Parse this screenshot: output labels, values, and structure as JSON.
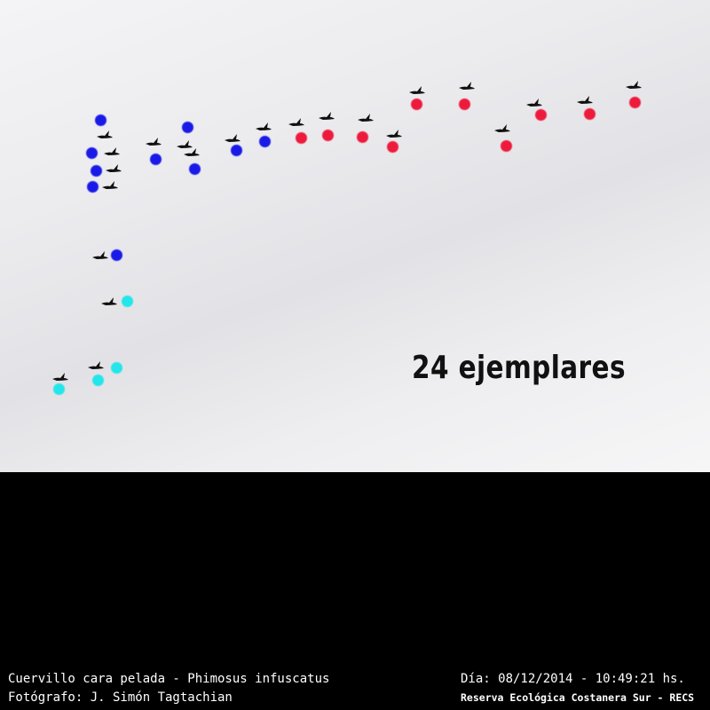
{
  "count_label": "24 ejemplares",
  "caption": {
    "species": "Cuervillo cara pelada - Phimosus infuscatus",
    "photographer": "Fotógrafo: J. Simón Tagtachian",
    "date": "Día: 08/12/2014 - 10:49:21 hs.",
    "place": "Reserva Ecológica Costanera Sur - RECS"
  },
  "marker_groups": [
    {
      "color": "#1a1ae8",
      "count": 10
    },
    {
      "color": "#ee1a3c",
      "count": 10
    },
    {
      "color": "#22e6ea",
      "count": 4
    }
  ]
}
